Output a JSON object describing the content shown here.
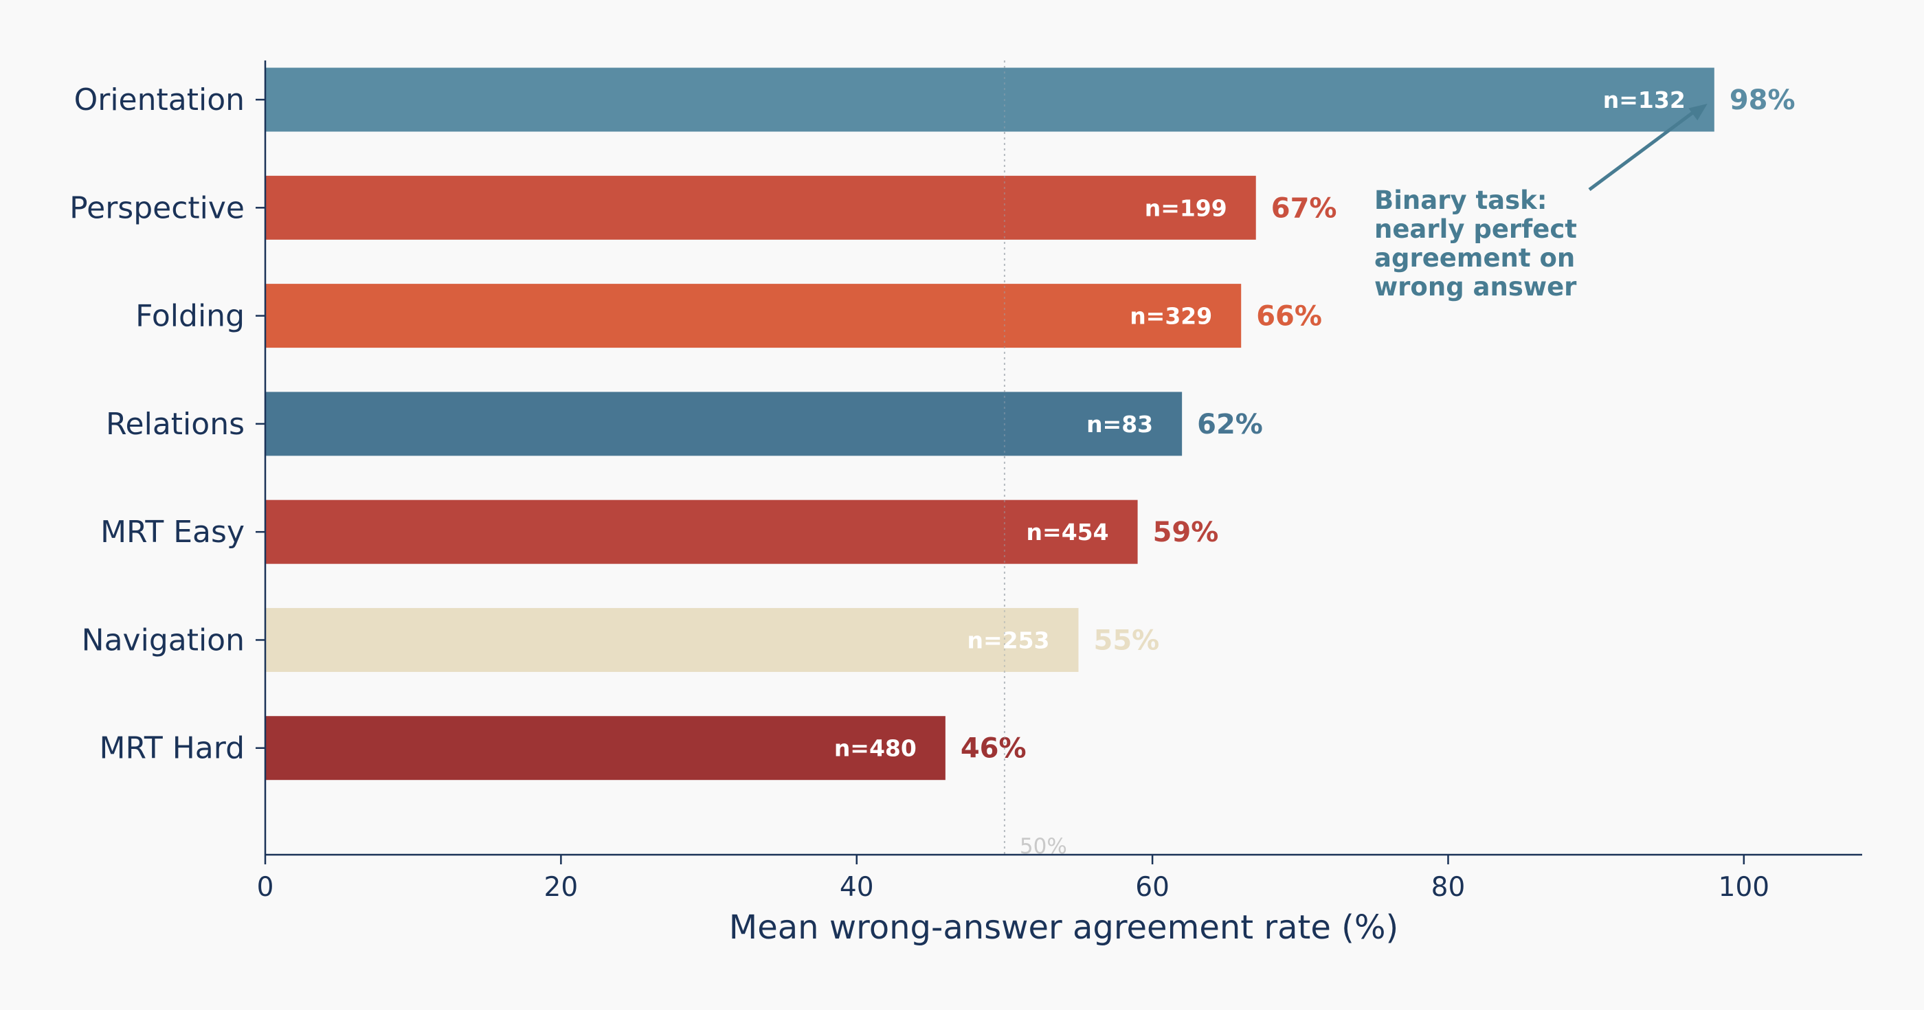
{
  "chart_data": {
    "type": "bar",
    "orientation": "horizontal",
    "categories": [
      "Orientation",
      "Perspective",
      "Folding",
      "Relations",
      "MRT Easy",
      "Navigation",
      "MRT Hard"
    ],
    "values": [
      98,
      67,
      66,
      62,
      59,
      55,
      46
    ],
    "value_labels": [
      "98%",
      "67%",
      "66%",
      "62%",
      "59%",
      "55%",
      "46%"
    ],
    "n_labels": [
      "n=132",
      "n=199",
      "n=329",
      "n=83",
      "n=454",
      "n=253",
      "n=480"
    ],
    "colors": [
      "#5a8ca3",
      "#c9513f",
      "#d95f3e",
      "#487692",
      "#b8453d",
      "#e8dec4",
      "#9d3434"
    ],
    "xlabel": "Mean wrong-answer agreement rate (%)",
    "xlim": [
      0,
      108
    ],
    "xticks": [
      0,
      20,
      40,
      60,
      80,
      100
    ],
    "xtick_labels": [
      "0",
      "20",
      "40",
      "60",
      "80",
      "100"
    ],
    "grid": false,
    "reference_line": {
      "x": 50,
      "label": "50%",
      "style": "dotted"
    },
    "annotation": {
      "lines": [
        "Binary task:",
        "nearly perfect",
        "agreement on",
        "wrong answer"
      ],
      "target_category": "Orientation",
      "color": "#487c92"
    }
  }
}
